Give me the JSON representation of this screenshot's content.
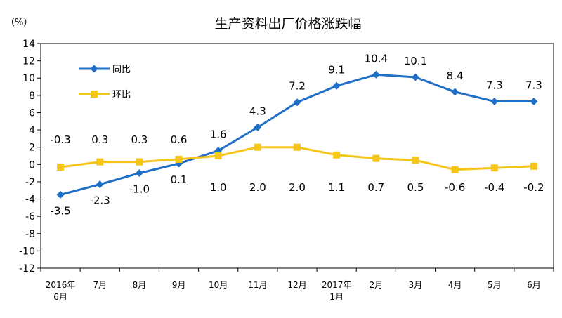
{
  "chart_data": {
    "type": "line",
    "title": "生产资料出厂价格涨跌幅",
    "unit_label": "（%）",
    "categories": [
      [
        "2016年",
        "6月"
      ],
      [
        "7月"
      ],
      [
        "8月"
      ],
      [
        "9月"
      ],
      [
        "10月"
      ],
      [
        "11月"
      ],
      [
        "12月"
      ],
      [
        "2017年",
        "1月"
      ],
      [
        "2月"
      ],
      [
        "3月"
      ],
      [
        "4月"
      ],
      [
        "5月"
      ],
      [
        "6月"
      ]
    ],
    "ylim": [
      -12,
      14
    ],
    "yticks": [
      14,
      12,
      10,
      8,
      6,
      4,
      2,
      0,
      -2,
      -4,
      -6,
      -8,
      -10,
      -12
    ],
    "grid": false,
    "legend_position": "top-left",
    "series": [
      {
        "name": "同比",
        "color": "#1F6FC6",
        "marker": "diamond",
        "values": [
          -3.5,
          -2.3,
          -1.0,
          0.1,
          1.6,
          4.3,
          7.2,
          9.1,
          10.4,
          10.1,
          8.4,
          7.3,
          7.3
        ],
        "labels": [
          "-3.5",
          "-2.3",
          "-1.0",
          "0.1",
          "1.6",
          "4.3",
          "7.2",
          "9.1",
          "10.4",
          "10.1",
          "8.4",
          "7.3",
          "7.3"
        ]
      },
      {
        "name": "环比",
        "color": "#F5C518",
        "marker": "square",
        "values": [
          -0.3,
          0.3,
          0.3,
          0.6,
          1.0,
          2.0,
          2.0,
          1.1,
          0.7,
          0.5,
          -0.6,
          -0.4,
          -0.2
        ],
        "labels": [
          "-0.3",
          "0.3",
          "0.3",
          "0.6",
          "1.0",
          "2.0",
          "2.0",
          "1.1",
          "0.7",
          "0.5",
          "-0.6",
          "-0.4",
          "-0.2"
        ]
      }
    ]
  }
}
